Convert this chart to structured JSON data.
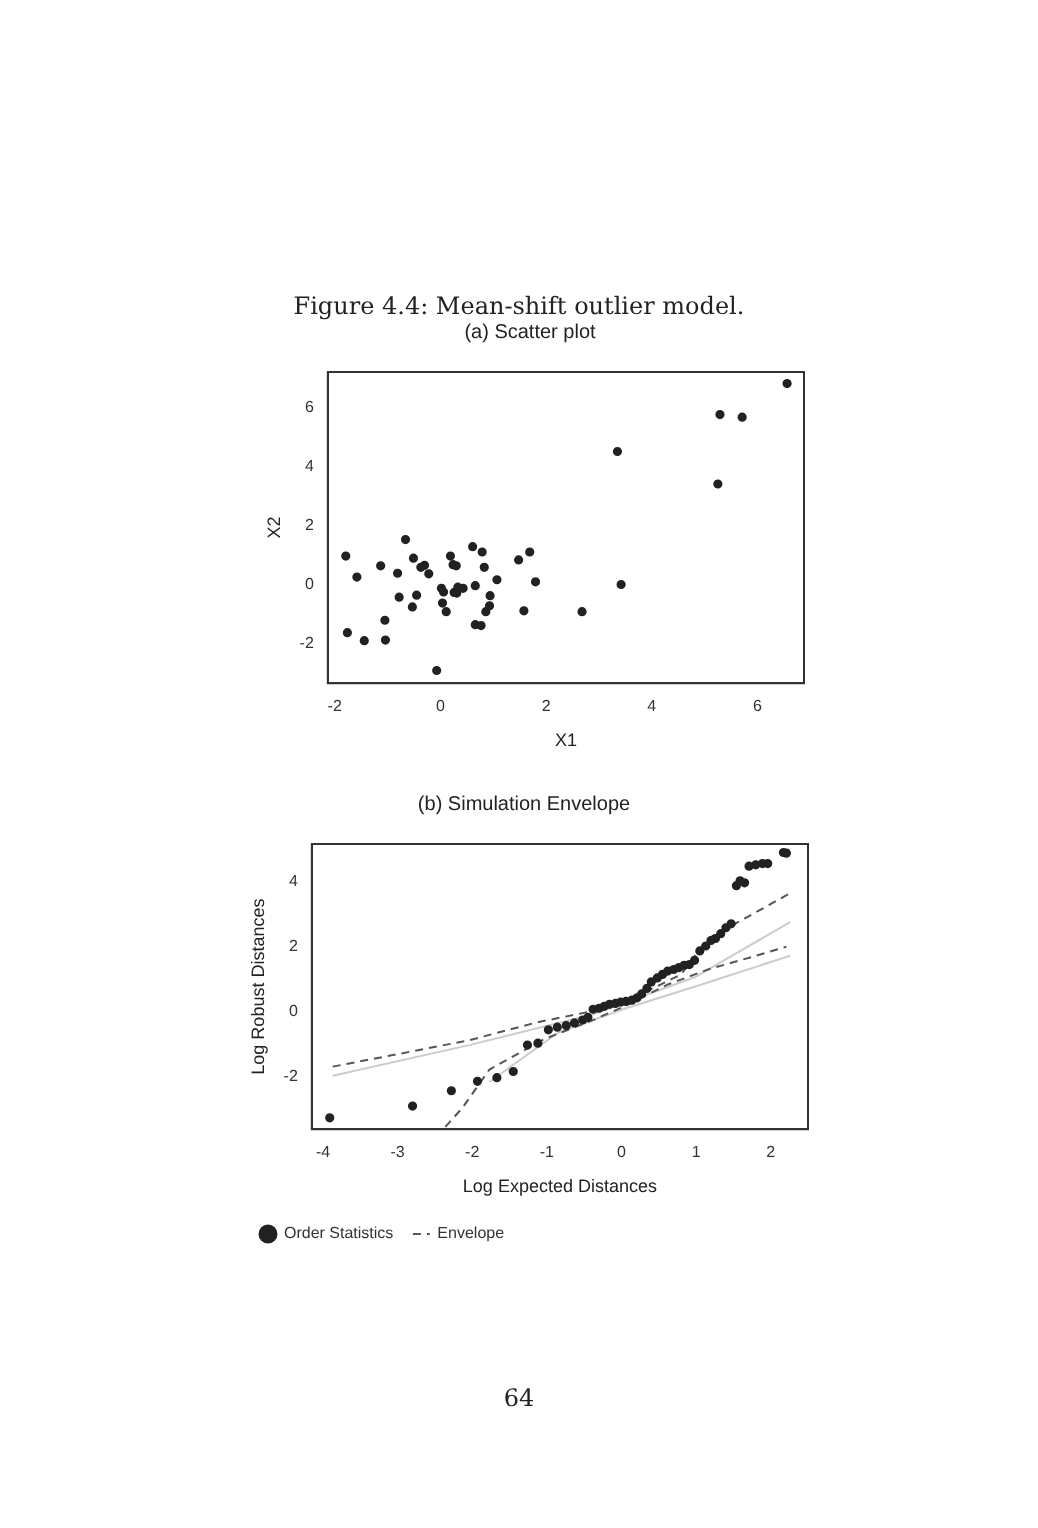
{
  "chart_data": [
    {
      "type": "scatter",
      "title": "(a) Scatter plot",
      "xlabel": "X1",
      "ylabel": "X2",
      "annotations": [
        "Figure 4.4: Mean-shift outlier model."
      ],
      "xlim": [
        -2.13,
        6.88
      ],
      "ylim": [
        -3.34,
        7.19
      ],
      "xticks": [
        -2,
        0,
        2,
        4,
        6
      ],
      "yticks": [
        -2,
        0,
        2,
        4,
        6
      ],
      "grid": false,
      "legend": false,
      "marker": "circle",
      "series": [
        {
          "color": "#222222",
          "x": [
            6.56,
            5.29,
            5.71,
            3.35,
            5.25,
            3.42,
            -1.79,
            -1.58,
            -1.76,
            -1.44,
            -1.13,
            -1.05,
            -1.04,
            -0.66,
            -0.81,
            -0.78,
            -0.51,
            -0.45,
            -0.53,
            -0.37,
            -0.3,
            -0.22,
            -0.07,
            0.02,
            0.06,
            0.04,
            0.11,
            0.19,
            0.24,
            0.3,
            0.26,
            0.31,
            0.33,
            0.43,
            0.61,
            0.66,
            0.66,
            0.77,
            0.79,
            0.83,
            0.86,
            0.94,
            0.93,
            1.07,
            1.48,
            1.58,
            1.69,
            1.8,
            2.68
          ],
          "values": [
            6.8,
            5.75,
            5.66,
            4.5,
            3.4,
            0,
            0.96,
            0.25,
            -1.63,
            -1.9,
            0.63,
            -1.21,
            -1.88,
            1.52,
            0.38,
            -0.43,
            0.89,
            -0.36,
            -0.76,
            0.58,
            0.65,
            0.36,
            -2.91,
            -0.13,
            -0.25,
            -0.63,
            -0.92,
            0.96,
            0.67,
            0.63,
            -0.27,
            -0.29,
            -0.09,
            -0.13,
            1.28,
            -0.04,
            -1.36,
            -1.39,
            1.1,
            0.58,
            -0.92,
            -0.38,
            -0.72,
            0.16,
            0.83,
            -0.89,
            1.1,
            0.09,
            -0.92
          ]
        }
      ]
    },
    {
      "type": "scatter",
      "title": "(b) Simulation Envelope",
      "xlabel": "Log Expected Distances",
      "ylabel": "Log Robust Distances",
      "annotations": [
        "64"
      ],
      "xlim": [
        -4.15,
        2.5
      ],
      "ylim": [
        -3.6,
        5.15
      ],
      "xticks": [
        -4,
        -3,
        -2,
        -1,
        0,
        1,
        2
      ],
      "yticks": [
        -2,
        0,
        2,
        4
      ],
      "grid": false,
      "legend": "bottom left",
      "series": [
        {
          "name": "Order Statistics",
          "type": "scatter",
          "marker": "circle",
          "color": "#222222",
          "x": [
            -3.91,
            -2.8,
            -2.28,
            -1.93,
            -1.67,
            -1.45,
            -1.26,
            -1.12,
            -0.98,
            -0.86,
            -0.74,
            -0.63,
            -0.52,
            -0.45,
            -0.38,
            -0.3,
            -0.23,
            -0.16,
            -0.08,
            -0.01,
            0.06,
            0.14,
            0.21,
            0.27,
            0.34,
            0.4,
            0.48,
            0.55,
            0.62,
            0.7,
            0.77,
            0.84,
            0.91,
            0.98,
            1.05,
            1.13,
            1.2,
            1.26,
            1.33,
            1.4,
            1.47,
            1.54,
            1.59,
            1.65,
            1.71,
            1.8,
            1.89,
            1.96,
            2.17,
            2.21
          ],
          "values": [
            -3.25,
            -2.89,
            -2.42,
            -2.13,
            -2.02,
            -1.83,
            -1.02,
            -0.96,
            -0.55,
            -0.47,
            -0.42,
            -0.34,
            -0.25,
            -0.17,
            0.08,
            0.11,
            0.17,
            0.23,
            0.26,
            0.3,
            0.32,
            0.36,
            0.43,
            0.55,
            0.72,
            0.92,
            1.04,
            1.15,
            1.25,
            1.3,
            1.36,
            1.43,
            1.45,
            1.58,
            1.87,
            2.02,
            2.19,
            2.25,
            2.4,
            2.58,
            2.7,
            3.87,
            4.02,
            3.96,
            4.47,
            4.51,
            4.55,
            4.55,
            4.89,
            4.87
          ]
        },
        {
          "name": "Envelope",
          "type": "line",
          "marker": "none",
          "line_style": "dashed",
          "color": "#555555",
          "x": [
            -3.87,
            -3.14,
            -2.04,
            -1.13,
            -0.39,
            0.25,
            0.8,
            1.16,
            1.71,
            2.26
          ],
          "values": [
            -1.68,
            -1.36,
            -0.87,
            -0.32,
            0.02,
            0.53,
            1.15,
            2.25,
            2.94,
            3.64
          ]
        },
        {
          "type": "line",
          "marker": "none",
          "line_style": "dashed",
          "color": "#555555",
          "x": [
            -2.36,
            -2.13,
            -1.77,
            -1.03,
            -0.39,
            0.06,
            0.61,
            1.16,
            1.8,
            2.21
          ],
          "values": [
            -3.53,
            -2.94,
            -1.77,
            -0.83,
            -0.26,
            0.19,
            0.83,
            1.3,
            1.72,
            2.0
          ]
        },
        {
          "type": "line",
          "marker": "none",
          "line_style": "solid",
          "color": "#cccccc",
          "x": [
            -3.87,
            -2.04,
            -0.39,
            0.98,
            2.26
          ],
          "values": [
            -1.96,
            -1.02,
            -0.08,
            1.06,
            2.75
          ]
        },
        {
          "type": "line",
          "marker": "none",
          "line_style": "solid",
          "color": "#cccccc",
          "x": [
            -1.77,
            -0.85,
            0.06,
            0.98,
            2.26
          ],
          "values": [
            -2.15,
            -0.64,
            0.11,
            0.77,
            1.72
          ]
        }
      ]
    }
  ]
}
